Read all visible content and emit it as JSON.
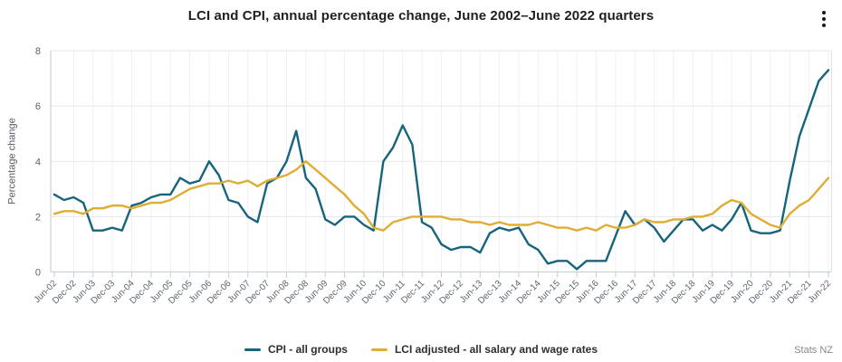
{
  "header": {
    "title": "LCI and CPI, annual percentage change, June 2002–June 2022 quarters",
    "menu_icon": "kebab-vertical-icon"
  },
  "footer": {
    "source": "Stats NZ"
  },
  "colors": {
    "cpi_line": "#17647d",
    "lci_line": "#dfad33",
    "grid": "#e6e7ea",
    "axis": "#c9d3dd"
  },
  "chart_data": {
    "type": "line",
    "title": "LCI and CPI, annual percentage change, June 2002–June 2022 quarters",
    "xlabel": "",
    "ylabel": "Percentage change",
    "ylim": [
      0,
      8
    ],
    "yticks": [
      0,
      2,
      4,
      6,
      8
    ],
    "grid": true,
    "legend_position": "bottom",
    "x": [
      "Jun-02",
      "Sep-02",
      "Dec-02",
      "Mar-03",
      "Jun-03",
      "Sep-03",
      "Dec-03",
      "Mar-04",
      "Jun-04",
      "Sep-04",
      "Dec-04",
      "Mar-05",
      "Jun-05",
      "Sep-05",
      "Dec-05",
      "Mar-06",
      "Jun-06",
      "Sep-06",
      "Dec-06",
      "Mar-07",
      "Jun-07",
      "Sep-07",
      "Dec-07",
      "Mar-08",
      "Jun-08",
      "Sep-08",
      "Dec-08",
      "Mar-09",
      "Jun-09",
      "Sep-09",
      "Dec-09",
      "Mar-10",
      "Jun-10",
      "Sep-10",
      "Dec-10",
      "Mar-11",
      "Jun-11",
      "Sep-11",
      "Dec-11",
      "Mar-12",
      "Jun-12",
      "Sep-12",
      "Dec-12",
      "Mar-13",
      "Jun-13",
      "Sep-13",
      "Dec-13",
      "Mar-14",
      "Jun-14",
      "Sep-14",
      "Dec-14",
      "Mar-15",
      "Jun-15",
      "Sep-15",
      "Dec-15",
      "Mar-16",
      "Jun-16",
      "Sep-16",
      "Dec-16",
      "Mar-17",
      "Jun-17",
      "Sep-17",
      "Dec-17",
      "Mar-18",
      "Jun-18",
      "Sep-18",
      "Dec-18",
      "Mar-19",
      "Jun-19",
      "Sep-19",
      "Dec-19",
      "Mar-20",
      "Jun-20",
      "Sep-20",
      "Dec-20",
      "Mar-21",
      "Jun-21",
      "Sep-21",
      "Dec-21",
      "Mar-22",
      "Jun-22"
    ],
    "x_tick_labels": [
      "Jun-02",
      "Dec-02",
      "Jun-03",
      "Dec-03",
      "Jun-04",
      "Dec-04",
      "Jun-05",
      "Dec-05",
      "Jun-06",
      "Dec-06",
      "Jun-07",
      "Dec-07",
      "Jun-08",
      "Dec-08",
      "Jun-09",
      "Dec-09",
      "Jun-10",
      "Dec-10",
      "Jun-11",
      "Dec-11",
      "Jun-12",
      "Dec-12",
      "Jun-13",
      "Dec-13",
      "Jun-14",
      "Dec-14",
      "Jun-15",
      "Dec-15",
      "Jun-16",
      "Dec-16",
      "Jun-17",
      "Dec-17",
      "Jun-18",
      "Dec-18",
      "Jun-19",
      "Dec-19",
      "Jun-20",
      "Dec-20",
      "Jun-21",
      "Dec-21",
      "Jun-22"
    ],
    "series": [
      {
        "name": "CPI - all groups",
        "color": "#17647d",
        "values": [
          2.8,
          2.6,
          2.7,
          2.5,
          1.5,
          1.5,
          1.6,
          1.5,
          2.4,
          2.5,
          2.7,
          2.8,
          2.8,
          3.4,
          3.2,
          3.3,
          4.0,
          3.5,
          2.6,
          2.5,
          2.0,
          1.8,
          3.2,
          3.4,
          4.0,
          5.1,
          3.4,
          3.0,
          1.9,
          1.7,
          2.0,
          2.0,
          1.7,
          1.5,
          4.0,
          4.5,
          5.3,
          4.6,
          1.8,
          1.6,
          1.0,
          0.8,
          0.9,
          0.9,
          0.7,
          1.4,
          1.6,
          1.5,
          1.6,
          1.0,
          0.8,
          0.3,
          0.4,
          0.4,
          0.1,
          0.4,
          0.4,
          0.4,
          1.3,
          2.2,
          1.7,
          1.9,
          1.6,
          1.1,
          1.5,
          1.9,
          1.9,
          1.5,
          1.7,
          1.5,
          1.9,
          2.5,
          1.5,
          1.4,
          1.4,
          1.5,
          3.3,
          4.9,
          5.9,
          6.9,
          7.3
        ]
      },
      {
        "name": "LCI adjusted - all salary and wage rates",
        "color": "#dfad33",
        "values": [
          2.1,
          2.2,
          2.2,
          2.1,
          2.3,
          2.3,
          2.4,
          2.4,
          2.3,
          2.4,
          2.5,
          2.5,
          2.6,
          2.8,
          3.0,
          3.1,
          3.2,
          3.2,
          3.3,
          3.2,
          3.3,
          3.1,
          3.3,
          3.4,
          3.5,
          3.7,
          4.0,
          3.7,
          3.4,
          3.1,
          2.8,
          2.4,
          2.1,
          1.6,
          1.5,
          1.8,
          1.9,
          2.0,
          2.0,
          2.0,
          2.0,
          1.9,
          1.9,
          1.8,
          1.8,
          1.7,
          1.8,
          1.7,
          1.7,
          1.7,
          1.8,
          1.7,
          1.6,
          1.6,
          1.5,
          1.6,
          1.5,
          1.7,
          1.6,
          1.6,
          1.7,
          1.9,
          1.8,
          1.8,
          1.9,
          1.9,
          2.0,
          2.0,
          2.1,
          2.4,
          2.6,
          2.5,
          2.1,
          1.9,
          1.7,
          1.6,
          2.1,
          2.4,
          2.6,
          3.0,
          3.4
        ]
      }
    ]
  }
}
